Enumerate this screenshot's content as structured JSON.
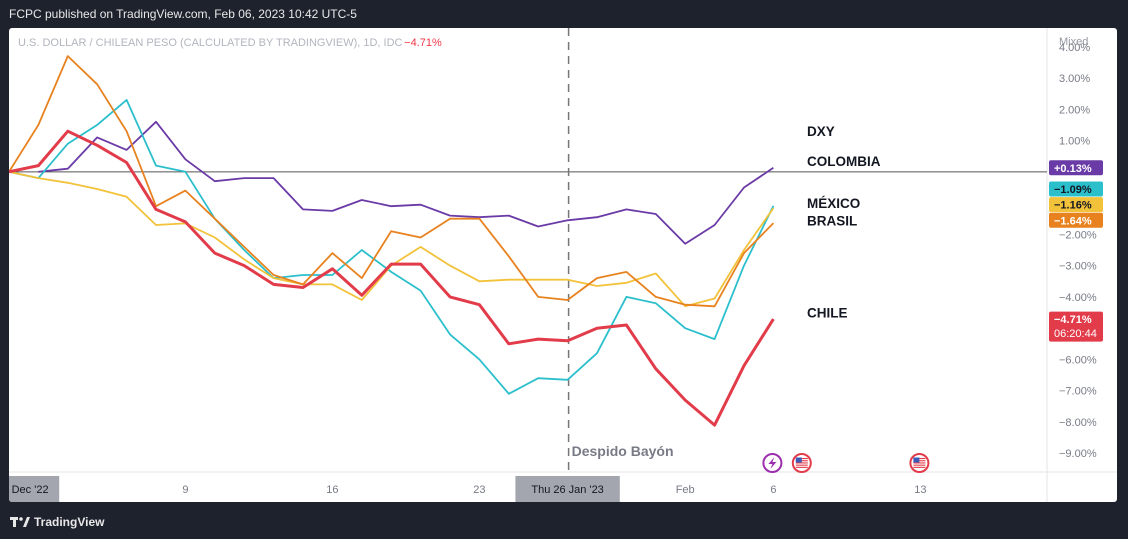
{
  "header": {
    "published_text": "FCPC published on TradingView.com, Feb 06, 2023 10:42 UTC-5"
  },
  "footer": {
    "brand": "TradingView"
  },
  "chart_data": {
    "type": "line",
    "symbol_title": "U.S. DOLLAR / CHILEAN PESO (CALCULATED BY TRADINGVIEW), 1D, IDC",
    "symbol_change": "−4.71%",
    "scale_mode": "Mixed",
    "ylim": [
      -9.6,
      4.6
    ],
    "y_ticks": [
      "4.00%",
      "3.00%",
      "2.00%",
      "1.00%",
      "−2.00%",
      "−3.00%",
      "−4.00%",
      "−5.00%",
      "−6.00%",
      "−7.00%",
      "−8.00%",
      "−9.00%"
    ],
    "y_tick_values": [
      4,
      3,
      2,
      1,
      -2,
      -3,
      -4,
      -5,
      -6,
      -7,
      -8,
      -9
    ],
    "x_ticks": [
      {
        "label": "Dec '22",
        "index": 0,
        "highlight": true
      },
      {
        "label": "9",
        "index": 6
      },
      {
        "label": "16",
        "index": 11
      },
      {
        "label": "23",
        "index": 16
      },
      {
        "label": "Thu 26 Jan '23",
        "index": 19,
        "highlight": true
      },
      {
        "label": "Feb",
        "index": 23
      },
      {
        "label": "6",
        "index": 26
      },
      {
        "label": "13",
        "index": 31
      }
    ],
    "x_max_index": 36,
    "zero_line": 0,
    "vertical_marker": {
      "index": 19,
      "label": "Despido Bayón"
    },
    "series": [
      {
        "name": "DXY",
        "color": "#6a3aa6",
        "values": [
          0,
          0.1,
          1.1,
          0.7,
          1.6,
          0.4,
          -0.3,
          -0.2,
          -0.2,
          -1.2,
          -1.25,
          -0.9,
          -1.1,
          -1.05,
          -1.4,
          -1.45,
          -1.4,
          -1.75,
          -1.55,
          -1.45,
          -1.2,
          -1.35,
          -2.3,
          -1.7,
          -0.5,
          0.13
        ],
        "x_start": 1,
        "tag": "+0.13%"
      },
      {
        "name": "COLOMBIA",
        "color": "#2bbfcc",
        "values": [
          0,
          -0.2,
          0.9,
          1.5,
          2.3,
          0.2,
          0,
          -1.5,
          -2.5,
          -3.4,
          -3.3,
          -3.3,
          -2.5,
          -3.2,
          -3.8,
          -5.2,
          -6.0,
          -7.1,
          -6.6,
          -6.65,
          -5.8,
          -4.0,
          -4.2,
          -5.0,
          -5.35,
          -3.0,
          -1.09
        ],
        "x_start": 0,
        "tag": "−1.09%"
      },
      {
        "name": "MÉXICO",
        "color": "#f2c23a",
        "values": [
          0,
          -0.2,
          -0.35,
          -0.55,
          -0.8,
          -1.7,
          -1.65,
          -2.1,
          -2.8,
          -3.4,
          -3.6,
          -3.6,
          -4.1,
          -3.0,
          -2.4,
          -3.0,
          -3.5,
          -3.45,
          -3.45,
          -3.45,
          -3.65,
          -3.55,
          -3.25,
          -4.3,
          -4.05,
          -2.5,
          -1.16
        ],
        "x_start": 0,
        "tag": "−1.16%"
      },
      {
        "name": "BRASIL",
        "color": "#e8821f",
        "values": [
          0,
          1.5,
          3.7,
          2.8,
          1.3,
          -1.1,
          -0.6,
          -1.5,
          -2.4,
          -3.3,
          -3.6,
          -2.6,
          -3.4,
          -1.9,
          -2.1,
          -1.5,
          -1.5,
          -2.7,
          -4.0,
          -4.1,
          -3.4,
          -3.2,
          -4.0,
          -4.25,
          -4.3,
          -2.6,
          -1.64
        ],
        "x_start": 0,
        "tag": "−1.64%"
      },
      {
        "name": "CHILE",
        "color": "#e23b4a",
        "values": [
          0,
          0.2,
          1.3,
          0.85,
          0.3,
          -1.2,
          -1.6,
          -2.6,
          -3.0,
          -3.6,
          -3.7,
          -3.1,
          -3.95,
          -2.95,
          -2.95,
          -4.0,
          -4.25,
          -5.5,
          -5.35,
          -5.4,
          -5.0,
          -4.9,
          -6.3,
          -7.3,
          -8.1,
          -6.2,
          -4.71
        ],
        "x_start": 0,
        "tag": "−4.71%",
        "countdown": "06:20:44"
      }
    ],
    "labels_right": [
      {
        "text": "DXY",
        "series": 0,
        "at": 1.3
      },
      {
        "text": "COLOMBIA",
        "series": 1,
        "at": 0.35
      },
      {
        "text": "MÉXICO",
        "series": 2,
        "at": -1.0
      },
      {
        "text": "BRASIL",
        "series": 3,
        "at": -1.55
      },
      {
        "text": "CHILE",
        "series": 4,
        "at": -4.5
      }
    ],
    "event_icons": [
      {
        "name": "lightning-icon",
        "index": 26,
        "color": "#9b2fae"
      },
      {
        "name": "us-flag-icon",
        "index": 27,
        "color": "#e23b4a"
      },
      {
        "name": "us-flag-icon",
        "index": 31,
        "color": "#e23b4a"
      }
    ]
  }
}
